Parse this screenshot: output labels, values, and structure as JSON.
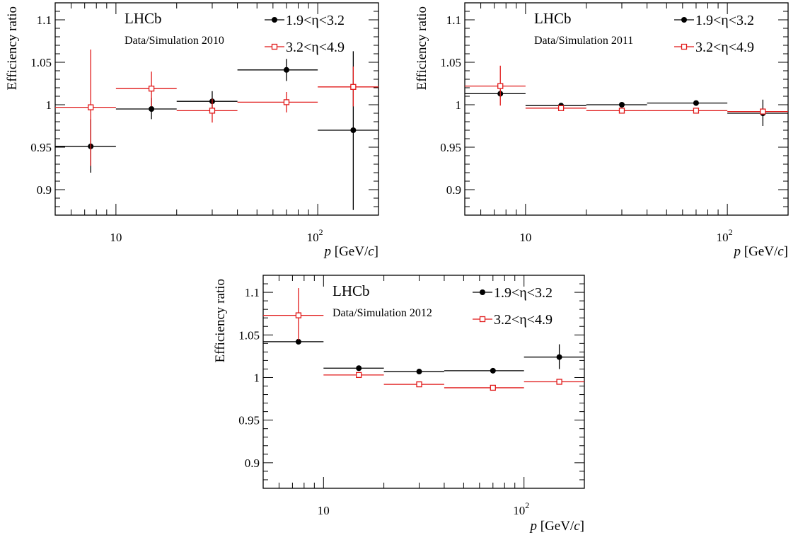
{
  "chart_data": [
    {
      "type": "scatter",
      "subtitle": "Data/Simulation 2010",
      "experiment": "LHCb",
      "xlabel": "[GeV/c]",
      "xlabel_symbol": "p",
      "ylabel": "Efficiency ratio",
      "xscale": "log",
      "xlim": [
        5,
        200
      ],
      "ylim": [
        0.87,
        1.12
      ],
      "yticks": [
        "0.9",
        "0.95",
        "1",
        "1.05",
        "1.1"
      ],
      "xticklabels": [
        "10",
        "10^2"
      ],
      "legend_position": "top-right",
      "series": [
        {
          "name": "1.9<η<3.2",
          "marker": "filled-circle",
          "color": "#000000",
          "points": [
            {
              "x": 7.5,
              "y": 0.951,
              "xlow": 5,
              "xhigh": 10,
              "ylow": 0.92,
              "yhigh": 0.983
            },
            {
              "x": 15,
              "y": 0.995,
              "xlow": 10,
              "xhigh": 20,
              "ylow": 0.983,
              "yhigh": 1.008
            },
            {
              "x": 30,
              "y": 1.004,
              "xlow": 20,
              "xhigh": 40,
              "ylow": 0.993,
              "yhigh": 1.016
            },
            {
              "x": 70,
              "y": 1.041,
              "xlow": 40,
              "xhigh": 100,
              "ylow": 1.028,
              "yhigh": 1.054
            },
            {
              "x": 150,
              "y": 0.97,
              "xlow": 100,
              "xhigh": 200,
              "ylow": 0.876,
              "yhigh": 1.063
            }
          ]
        },
        {
          "name": "3.2<η<4.9",
          "marker": "open-square",
          "color": "#e01818",
          "points": [
            {
              "x": 7.5,
              "y": 0.997,
              "xlow": 5,
              "xhigh": 10,
              "ylow": 0.928,
              "yhigh": 1.065
            },
            {
              "x": 15,
              "y": 1.019,
              "xlow": 10,
              "xhigh": 20,
              "ylow": 0.998,
              "yhigh": 1.039
            },
            {
              "x": 30,
              "y": 0.993,
              "xlow": 20,
              "xhigh": 40,
              "ylow": 0.979,
              "yhigh": 1.007
            },
            {
              "x": 70,
              "y": 1.003,
              "xlow": 40,
              "xhigh": 100,
              "ylow": 0.991,
              "yhigh": 1.015
            },
            {
              "x": 150,
              "y": 1.021,
              "xlow": 100,
              "xhigh": 200,
              "ylow": 0.998,
              "yhigh": 1.045
            }
          ]
        }
      ]
    },
    {
      "type": "scatter",
      "subtitle": "Data/Simulation 2011",
      "experiment": "LHCb",
      "xlabel": "[GeV/c]",
      "xlabel_symbol": "p",
      "ylabel": "Efficiency ratio",
      "xscale": "log",
      "xlim": [
        5,
        200
      ],
      "ylim": [
        0.87,
        1.12
      ],
      "yticks": [
        "0.9",
        "0.95",
        "1",
        "1.05",
        "1.1"
      ],
      "xticklabels": [
        "10",
        "10^2"
      ],
      "legend_position": "top-right",
      "series": [
        {
          "name": "1.9<η<3.2",
          "marker": "filled-circle",
          "color": "#000000",
          "points": [
            {
              "x": 7.5,
              "y": 1.013,
              "xlow": 5,
              "xhigh": 10,
              "ylow": 1.009,
              "yhigh": 1.017
            },
            {
              "x": 15,
              "y": 0.999,
              "xlow": 10,
              "xhigh": 20,
              "ylow": 0.998,
              "yhigh": 1.0
            },
            {
              "x": 30,
              "y": 1.0,
              "xlow": 20,
              "xhigh": 40,
              "ylow": 0.999,
              "yhigh": 1.001
            },
            {
              "x": 70,
              "y": 1.002,
              "xlow": 40,
              "xhigh": 100,
              "ylow": 1.001,
              "yhigh": 1.003
            },
            {
              "x": 150,
              "y": 0.99,
              "xlow": 100,
              "xhigh": 200,
              "ylow": 0.975,
              "yhigh": 1.006
            }
          ]
        },
        {
          "name": "3.2<η<4.9",
          "marker": "open-square",
          "color": "#e01818",
          "points": [
            {
              "x": 7.5,
              "y": 1.022,
              "xlow": 5,
              "xhigh": 10,
              "ylow": 0.999,
              "yhigh": 1.046
            },
            {
              "x": 15,
              "y": 0.996,
              "xlow": 10,
              "xhigh": 20,
              "ylow": 0.995,
              "yhigh": 0.997
            },
            {
              "x": 30,
              "y": 0.993,
              "xlow": 20,
              "xhigh": 40,
              "ylow": 0.992,
              "yhigh": 0.994
            },
            {
              "x": 70,
              "y": 0.993,
              "xlow": 40,
              "xhigh": 100,
              "ylow": 0.992,
              "yhigh": 0.994
            },
            {
              "x": 150,
              "y": 0.992,
              "xlow": 100,
              "xhigh": 200,
              "ylow": 0.99,
              "yhigh": 0.994
            }
          ]
        }
      ]
    },
    {
      "type": "scatter",
      "subtitle": "Data/Simulation 2012",
      "experiment": "LHCb",
      "xlabel": "[GeV/c]",
      "xlabel_symbol": "p",
      "ylabel": "Efficiency ratio",
      "xscale": "log",
      "xlim": [
        5,
        200
      ],
      "ylim": [
        0.87,
        1.12
      ],
      "yticks": [
        "0.9",
        "0.95",
        "1",
        "1.05",
        "1.1"
      ],
      "xticklabels": [
        "10",
        "10^2"
      ],
      "legend_position": "top-right",
      "series": [
        {
          "name": "1.9<η<3.2",
          "marker": "filled-circle",
          "color": "#000000",
          "points": [
            {
              "x": 7.5,
              "y": 1.042,
              "xlow": 5,
              "xhigh": 10,
              "ylow": 1.04,
              "yhigh": 1.044
            },
            {
              "x": 15,
              "y": 1.011,
              "xlow": 10,
              "xhigh": 20,
              "ylow": 1.01,
              "yhigh": 1.012
            },
            {
              "x": 30,
              "y": 1.007,
              "xlow": 20,
              "xhigh": 40,
              "ylow": 1.006,
              "yhigh": 1.008
            },
            {
              "x": 70,
              "y": 1.008,
              "xlow": 40,
              "xhigh": 100,
              "ylow": 1.007,
              "yhigh": 1.009
            },
            {
              "x": 150,
              "y": 1.024,
              "xlow": 100,
              "xhigh": 200,
              "ylow": 1.01,
              "yhigh": 1.039
            }
          ]
        },
        {
          "name": "3.2<η<4.9",
          "marker": "open-square",
          "color": "#e01818",
          "points": [
            {
              "x": 7.5,
              "y": 1.073,
              "xlow": 5,
              "xhigh": 10,
              "ylow": 1.044,
              "yhigh": 1.105
            },
            {
              "x": 15,
              "y": 1.003,
              "xlow": 10,
              "xhigh": 20,
              "ylow": 1.0,
              "yhigh": 1.006
            },
            {
              "x": 30,
              "y": 0.992,
              "xlow": 20,
              "xhigh": 40,
              "ylow": 0.991,
              "yhigh": 0.993
            },
            {
              "x": 70,
              "y": 0.988,
              "xlow": 40,
              "xhigh": 100,
              "ylow": 0.987,
              "yhigh": 0.989
            },
            {
              "x": 150,
              "y": 0.995,
              "xlow": 100,
              "xhigh": 200,
              "ylow": 0.993,
              "yhigh": 0.997
            }
          ]
        }
      ]
    }
  ]
}
